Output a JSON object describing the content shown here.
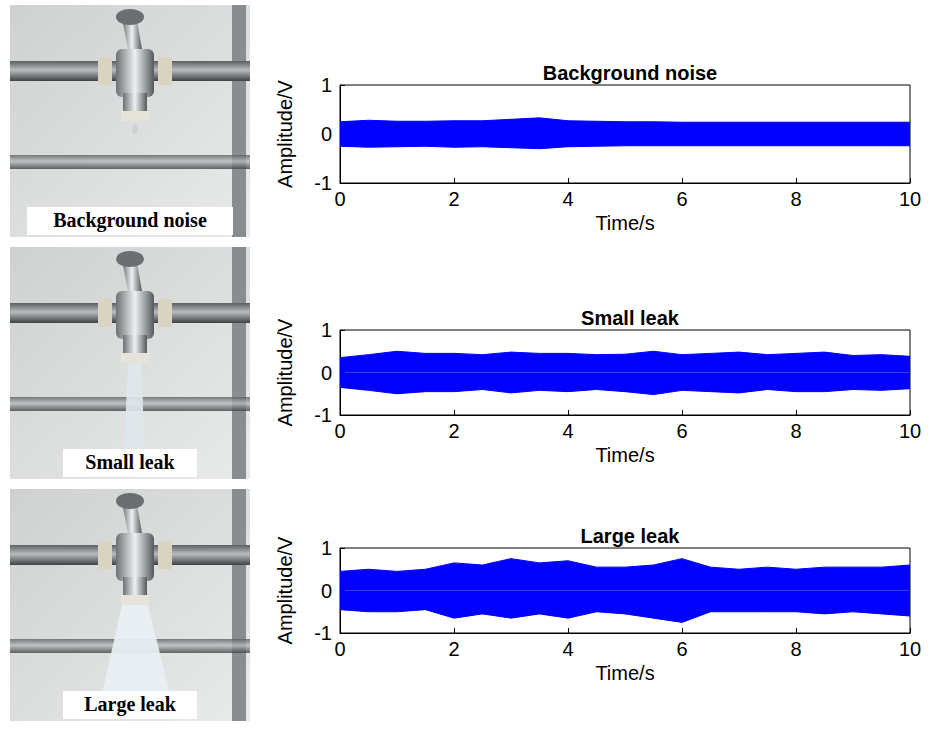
{
  "photos": {
    "captions": [
      "Background noise",
      "Small leak",
      "Large leak"
    ]
  },
  "chart_data": [
    {
      "type": "area",
      "title": "Background noise",
      "xlabel": "Time/s",
      "ylabel": "Amplitude/V",
      "x": [
        0,
        0.5,
        1,
        1.5,
        2,
        2.5,
        3,
        3.5,
        4,
        4.5,
        5,
        5.5,
        6,
        6.5,
        7,
        7.5,
        8,
        8.5,
        9,
        9.5,
        10
      ],
      "series": [
        {
          "color": "#0000ff",
          "values": [
            0.25,
            0.28,
            0.26,
            0.26,
            0.27,
            0.27,
            0.3,
            0.33,
            0.27,
            0.26,
            0.25,
            0.25,
            0.24,
            0.24,
            0.24,
            0.24,
            0.24,
            0.24,
            0.24,
            0.24,
            0.24
          ]
        },
        {
          "color": "#0000ff",
          "values": [
            -0.25,
            -0.27,
            -0.26,
            -0.25,
            -0.27,
            -0.26,
            -0.28,
            -0.3,
            -0.26,
            -0.25,
            -0.24,
            -0.24,
            -0.24,
            -0.24,
            -0.24,
            -0.24,
            -0.24,
            -0.24,
            -0.24,
            -0.24,
            -0.24
          ]
        }
      ],
      "xlim": [
        0,
        10
      ],
      "xticks": [
        0,
        2,
        4,
        6,
        8,
        10
      ],
      "ylim": [
        -1,
        1
      ],
      "yticks": [
        -1,
        0,
        1
      ],
      "grid": false
    },
    {
      "type": "area",
      "title": "Small leak",
      "xlabel": "Time/s",
      "ylabel": "Amplitude/V",
      "x": [
        0,
        0.5,
        1,
        1.5,
        2,
        2.5,
        3,
        3.5,
        4,
        4.5,
        5,
        5.5,
        6,
        6.5,
        7,
        7.5,
        8,
        8.5,
        9,
        9.5,
        10
      ],
      "series": [
        {
          "color": "#0000ff",
          "values": [
            0.35,
            0.42,
            0.5,
            0.45,
            0.45,
            0.42,
            0.48,
            0.45,
            0.45,
            0.42,
            0.43,
            0.5,
            0.42,
            0.45,
            0.48,
            0.42,
            0.45,
            0.48,
            0.4,
            0.42,
            0.38
          ]
        },
        {
          "color": "#0000ff",
          "values": [
            -0.35,
            -0.42,
            -0.5,
            -0.45,
            -0.45,
            -0.4,
            -0.48,
            -0.42,
            -0.45,
            -0.4,
            -0.45,
            -0.52,
            -0.42,
            -0.45,
            -0.48,
            -0.4,
            -0.45,
            -0.45,
            -0.4,
            -0.42,
            -0.38
          ]
        }
      ],
      "xlim": [
        0,
        10
      ],
      "xticks": [
        0,
        2,
        4,
        6,
        8,
        10
      ],
      "ylim": [
        -1,
        1
      ],
      "yticks": [
        -1,
        0,
        1
      ],
      "grid": false
    },
    {
      "type": "area",
      "title": "Large leak",
      "xlabel": "Time/s",
      "ylabel": "Amplitude/V",
      "x": [
        0,
        0.5,
        1,
        1.5,
        2,
        2.5,
        3,
        3.5,
        4,
        4.5,
        5,
        5.5,
        6,
        6.5,
        7,
        7.5,
        8,
        8.5,
        9,
        9.5,
        10
      ],
      "series": [
        {
          "color": "#0000ff",
          "values": [
            0.45,
            0.5,
            0.45,
            0.5,
            0.65,
            0.6,
            0.75,
            0.65,
            0.7,
            0.55,
            0.55,
            0.6,
            0.75,
            0.55,
            0.5,
            0.55,
            0.5,
            0.55,
            0.55,
            0.55,
            0.6
          ]
        },
        {
          "color": "#0000ff",
          "values": [
            -0.45,
            -0.5,
            -0.5,
            -0.45,
            -0.65,
            -0.55,
            -0.65,
            -0.55,
            -0.65,
            -0.5,
            -0.55,
            -0.65,
            -0.75,
            -0.5,
            -0.5,
            -0.5,
            -0.5,
            -0.55,
            -0.5,
            -0.55,
            -0.6
          ]
        }
      ],
      "xlim": [
        0,
        10
      ],
      "xticks": [
        0,
        2,
        4,
        6,
        8,
        10
      ],
      "ylim": [
        -1,
        1
      ],
      "yticks": [
        -1,
        0,
        1
      ],
      "grid": false
    }
  ]
}
